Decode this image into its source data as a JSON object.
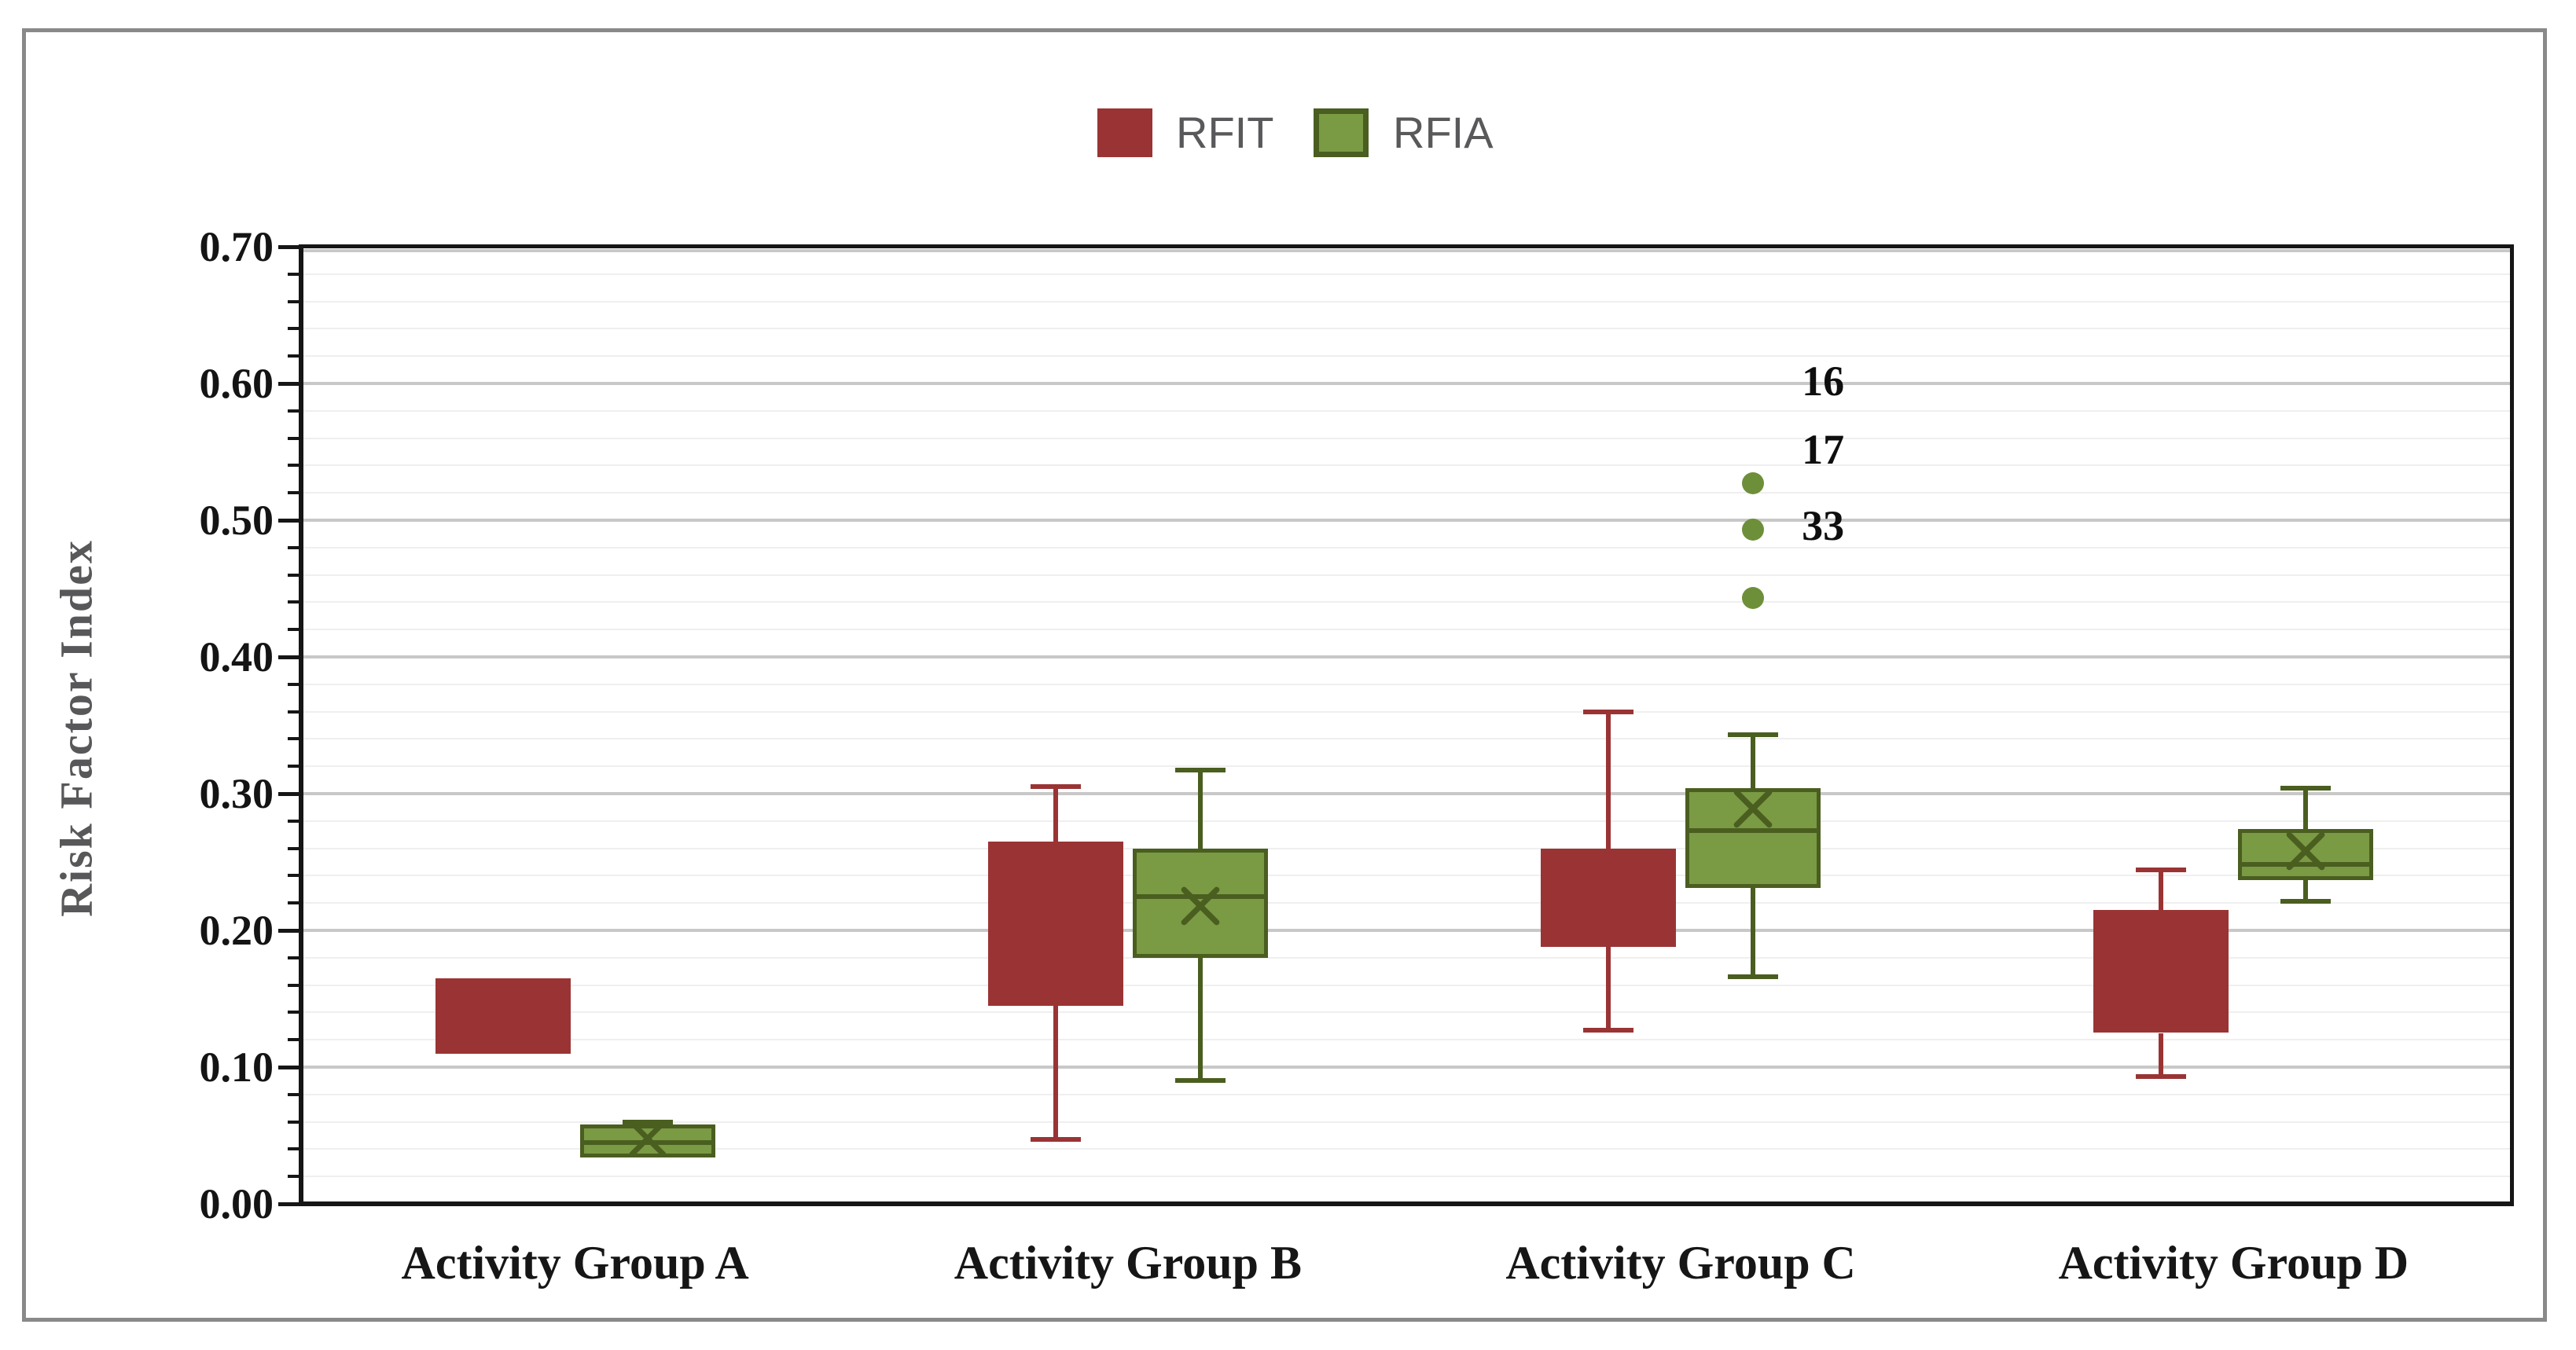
{
  "figure": {
    "background": "#ffffff",
    "border_color": "#898989"
  },
  "legend": {
    "position": "top-center",
    "items": [
      {
        "label": "RFIT",
        "swatch_fill": "#9a3434",
        "swatch_border": "#9a3434"
      },
      {
        "label": "RFIA",
        "swatch_fill": "#7a9a44",
        "swatch_border": "#4a5e20"
      }
    ]
  },
  "chart_data": {
    "type": "boxplot",
    "title": "",
    "ylabel": "Risk Factor Index",
    "xlabel": "",
    "ylim": [
      0,
      0.7
    ],
    "ytick_step": 0.1,
    "yminor_step": 0.02,
    "grid": true,
    "legend_position": "top",
    "ytick_labels": [
      "0.00",
      "0.10",
      "0.20",
      "0.30",
      "0.40",
      "0.50",
      "0.60",
      "0.70"
    ],
    "categories": [
      "Activity Group A",
      "Activity Group B",
      "Activity Group C",
      "Activity Group D"
    ],
    "series": [
      {
        "name": "RFIT",
        "fill": "#9a3434",
        "stroke": "#9a3434",
        "boxes": [
          {
            "category": "Activity Group A",
            "min": null,
            "q1": 0.11,
            "median": null,
            "q3": 0.165,
            "max": null,
            "mean": null,
            "outliers": []
          },
          {
            "category": "Activity Group B",
            "min": 0.047,
            "q1": 0.145,
            "median": null,
            "q3": 0.265,
            "max": 0.305,
            "mean": null,
            "outliers": []
          },
          {
            "category": "Activity Group C",
            "min": 0.127,
            "q1": 0.188,
            "median": null,
            "q3": 0.26,
            "max": 0.36,
            "mean": null,
            "outliers": []
          },
          {
            "category": "Activity Group D",
            "min": 0.093,
            "q1": 0.125,
            "median": null,
            "q3": 0.215,
            "max": 0.244,
            "mean": null,
            "outliers": []
          }
        ]
      },
      {
        "name": "RFIA",
        "fill": "#7a9a44",
        "stroke": "#4a5e20",
        "boxes": [
          {
            "category": "Activity Group A",
            "min": 0.034,
            "q1": 0.034,
            "median": 0.045,
            "q3": 0.058,
            "max": 0.06,
            "mean": 0.048,
            "outliers": []
          },
          {
            "category": "Activity Group B",
            "min": 0.09,
            "q1": 0.18,
            "median": 0.225,
            "q3": 0.26,
            "max": 0.317,
            "mean": 0.218,
            "outliers": []
          },
          {
            "category": "Activity Group C",
            "min": 0.166,
            "q1": 0.231,
            "median": 0.273,
            "q3": 0.304,
            "max": 0.343,
            "mean": 0.289,
            "outliers": [
              0.443,
              0.493,
              0.527
            ]
          },
          {
            "category": "Activity Group D",
            "min": 0.221,
            "q1": 0.237,
            "median": 0.248,
            "q3": 0.274,
            "max": 0.304,
            "mean": 0.258,
            "outliers": []
          }
        ]
      }
    ],
    "outlier_point_labels": [
      {
        "text": "16",
        "value": 0.602
      },
      {
        "text": "17",
        "value": 0.552
      },
      {
        "text": "33",
        "value": 0.496
      }
    ],
    "outlier_dot_color": "#6e8f3a"
  }
}
